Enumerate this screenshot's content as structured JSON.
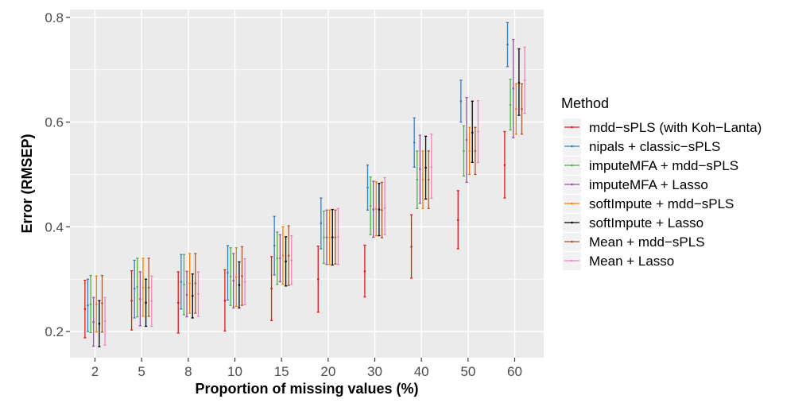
{
  "chart_data": {
    "type": "errorbar",
    "xlabel": "Proportion of missing values (%)",
    "ylabel": "Error (RMSEP)",
    "categories": [
      "2",
      "5",
      "8",
      "10",
      "15",
      "20",
      "30",
      "40",
      "50",
      "60"
    ],
    "ylim": [
      0.15,
      0.815
    ],
    "yticks": [
      0.2,
      0.4,
      0.6,
      0.8
    ],
    "ytick_labels": [
      "0.2",
      "0.4",
      "0.6",
      "0.8"
    ],
    "grid": true,
    "legend": {
      "title": "Method",
      "placement": "right"
    },
    "series": [
      {
        "name": "mdd−sPLS (with Koh−Lanta)",
        "color": "#e41a1c",
        "mean": [
          0.243,
          0.259,
          0.255,
          0.259,
          0.282,
          0.3,
          0.315,
          0.362,
          0.413,
          0.518
        ],
        "low": [
          0.188,
          0.203,
          0.197,
          0.201,
          0.221,
          0.237,
          0.266,
          0.302,
          0.358,
          0.455
        ],
        "high": [
          0.298,
          0.316,
          0.314,
          0.318,
          0.343,
          0.363,
          0.365,
          0.423,
          0.469,
          0.582
        ]
      },
      {
        "name": "nipals + classic−sPLS",
        "color": "#377eb8",
        "mean": [
          0.25,
          0.282,
          0.295,
          0.312,
          0.364,
          0.407,
          0.475,
          0.561,
          0.64,
          0.748
        ],
        "low": [
          0.2,
          0.226,
          0.243,
          0.26,
          0.308,
          0.358,
          0.432,
          0.514,
          0.6,
          0.706
        ],
        "high": [
          0.3,
          0.336,
          0.347,
          0.364,
          0.42,
          0.455,
          0.518,
          0.608,
          0.68,
          0.79
        ]
      },
      {
        "name": "imputeMFA + mdd−sPLS",
        "color": "#4daf4a",
        "mean": [
          0.252,
          0.285,
          0.29,
          0.305,
          0.34,
          0.38,
          0.44,
          0.49,
          0.545,
          0.633
        ],
        "low": [
          0.198,
          0.228,
          0.232,
          0.25,
          0.29,
          0.33,
          0.385,
          0.435,
          0.497,
          0.585
        ],
        "high": [
          0.307,
          0.34,
          0.347,
          0.36,
          0.39,
          0.43,
          0.495,
          0.545,
          0.593,
          0.682
        ]
      },
      {
        "name": "imputeMFA + Lasso",
        "color": "#984ea3",
        "mean": [
          0.218,
          0.262,
          0.27,
          0.297,
          0.34,
          0.38,
          0.433,
          0.51,
          0.566,
          0.664
        ],
        "low": [
          0.172,
          0.211,
          0.228,
          0.245,
          0.295,
          0.328,
          0.38,
          0.445,
          0.485,
          0.57
        ],
        "high": [
          0.265,
          0.314,
          0.315,
          0.349,
          0.385,
          0.432,
          0.487,
          0.575,
          0.647,
          0.758
        ]
      },
      {
        "name": "softImpute + mdd−sPLS",
        "color": "#ff7f00",
        "mean": [
          0.252,
          0.284,
          0.292,
          0.304,
          0.345,
          0.38,
          0.434,
          0.49,
          0.545,
          0.625
        ],
        "low": [
          0.199,
          0.229,
          0.235,
          0.248,
          0.29,
          0.328,
          0.383,
          0.435,
          0.5,
          0.577
        ],
        "high": [
          0.306,
          0.34,
          0.349,
          0.36,
          0.4,
          0.432,
          0.486,
          0.545,
          0.59,
          0.673
        ]
      },
      {
        "name": "softImpute + Lasso",
        "color": "#000000",
        "mean": [
          0.215,
          0.255,
          0.268,
          0.289,
          0.334,
          0.38,
          0.433,
          0.513,
          0.58,
          0.675
        ],
        "low": [
          0.171,
          0.21,
          0.226,
          0.245,
          0.287,
          0.327,
          0.383,
          0.453,
          0.523,
          0.613
        ],
        "high": [
          0.259,
          0.3,
          0.31,
          0.333,
          0.381,
          0.433,
          0.483,
          0.573,
          0.64,
          0.74
        ]
      },
      {
        "name": "Mean + mdd−sPLS",
        "color": "#a65628",
        "mean": [
          0.254,
          0.284,
          0.292,
          0.306,
          0.345,
          0.38,
          0.432,
          0.49,
          0.545,
          0.625
        ],
        "low": [
          0.199,
          0.229,
          0.235,
          0.25,
          0.288,
          0.329,
          0.379,
          0.435,
          0.5,
          0.577
        ],
        "high": [
          0.307,
          0.34,
          0.349,
          0.362,
          0.402,
          0.432,
          0.485,
          0.545,
          0.59,
          0.673
        ]
      },
      {
        "name": "Mean + Lasso",
        "color": "#f781bf",
        "mean": [
          0.22,
          0.258,
          0.272,
          0.295,
          0.336,
          0.381,
          0.436,
          0.514,
          0.582,
          0.68
        ],
        "low": [
          0.174,
          0.21,
          0.229,
          0.251,
          0.29,
          0.328,
          0.385,
          0.455,
          0.523,
          0.617
        ],
        "high": [
          0.265,
          0.306,
          0.314,
          0.339,
          0.383,
          0.435,
          0.494,
          0.577,
          0.641,
          0.743
        ]
      }
    ]
  }
}
